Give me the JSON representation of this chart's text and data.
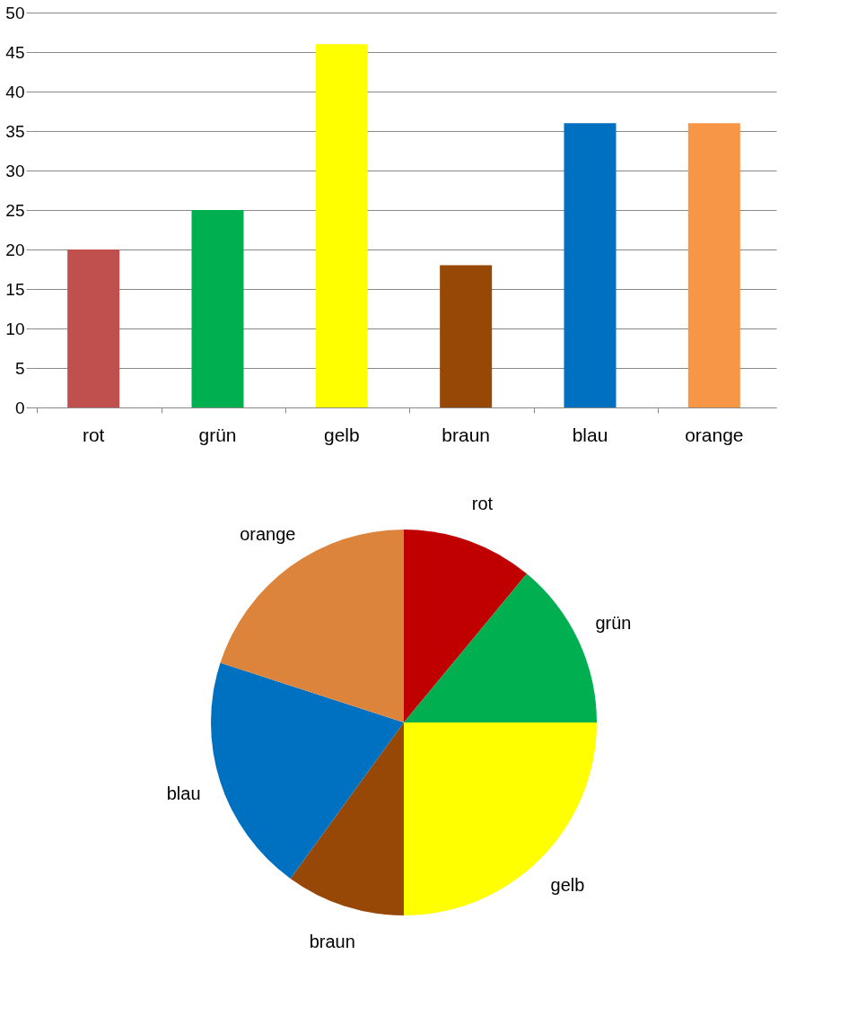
{
  "chart_data": [
    {
      "type": "bar",
      "categories": [
        "rot",
        "grün",
        "gelb",
        "braun",
        "blau",
        "orange"
      ],
      "values": [
        20,
        25,
        46,
        18,
        36,
        36
      ],
      "colors": [
        "#c0504d",
        "#00b050",
        "#ffff00",
        "#974706",
        "#0070c0",
        "#f79646"
      ],
      "ylim": [
        0,
        50
      ],
      "yticks": [
        0,
        5,
        10,
        15,
        20,
        25,
        30,
        35,
        40,
        45,
        50
      ],
      "grid": "y",
      "legend": false
    },
    {
      "type": "pie",
      "categories": [
        "rot",
        "grün",
        "gelb",
        "braun",
        "blau",
        "orange"
      ],
      "values": [
        11,
        14,
        25,
        10,
        20,
        20
      ],
      "colors": [
        "#c00000",
        "#00b050",
        "#ffff00",
        "#974706",
        "#0070c0",
        "#dc843c"
      ],
      "legend": false
    }
  ]
}
